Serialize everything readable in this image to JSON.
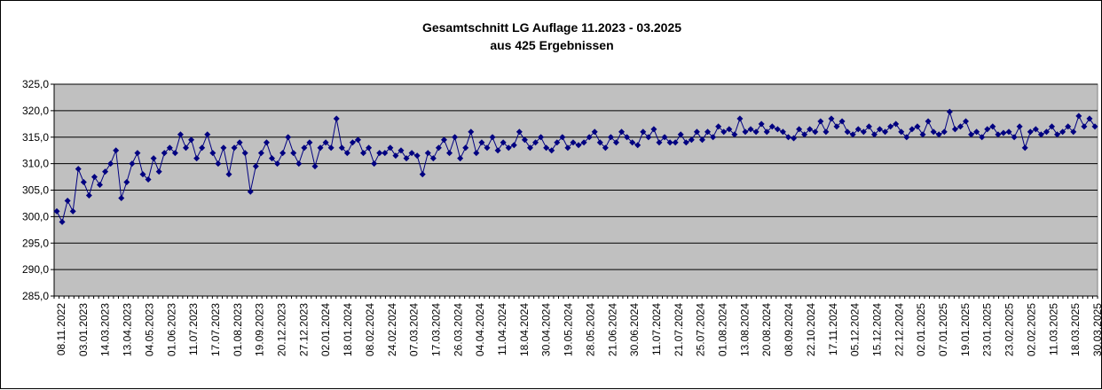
{
  "chart_data": {
    "type": "line",
    "title": "Gesamtschnitt LG Auflage 11.2023 - 03.2025",
    "subtitle": "aus 425 Ergebnissen",
    "xlabel": "",
    "ylabel": "",
    "ylim": [
      285,
      325
    ],
    "yticks": [
      "285,0",
      "290,0",
      "295,0",
      "300,0",
      "305,0",
      "310,0",
      "315,0",
      "320,0",
      "325,0"
    ],
    "grid": true,
    "legend": "none",
    "colors": {
      "series": "#000080",
      "plot_bg": "#c0c0c0",
      "grid": "#000000"
    },
    "x_tick_labels": [
      "08.11.2022",
      "03.01.2023",
      "14.03.2023",
      "13.04.2023",
      "04.05.2023",
      "01.06.2023",
      "11.07.2023",
      "17.07.2023",
      "01.08.2023",
      "19.09.2023",
      "20.12.2023",
      "27.12.2023",
      "02.01.2024",
      "18.01.2024",
      "08.02.2024",
      "24.02.2024",
      "07.03.2024",
      "17.03.2024",
      "26.03.2024",
      "04.04.2024",
      "11.04.2024",
      "18.04.2024",
      "30.04.2024",
      "19.05.2024",
      "28.05.2024",
      "21.06.2024",
      "30.06.2024",
      "11.07.2024",
      "21.07.2024",
      "25.07.2024",
      "01.08.2024",
      "13.08.2024",
      "20.08.2024",
      "08.09.2024",
      "22.10.2024",
      "17.11.2024",
      "05.12.2024",
      "15.12.2024",
      "22.12.2024",
      "02.01.2025",
      "07.01.2025",
      "19.01.2025",
      "23.01.2025",
      "23.02.2025",
      "02.02.2025",
      "11.03.2025",
      "18.03.2025",
      "30.03.2025"
    ],
    "series": [
      {
        "name": "Gesamtschnitt",
        "values": [
          301,
          299,
          303,
          301,
          309,
          306.5,
          304,
          307.5,
          306,
          308.5,
          310,
          312.5,
          303.5,
          306.5,
          310,
          312,
          308,
          307,
          311,
          308.5,
          312,
          313,
          312,
          315.5,
          313,
          314.5,
          311,
          313,
          315.5,
          312,
          310,
          313,
          308,
          313,
          314,
          312,
          304.7,
          309.5,
          312,
          314,
          311,
          310,
          312,
          315,
          312,
          310,
          313,
          314,
          309.5,
          313,
          314,
          313,
          318.5,
          313,
          312,
          314,
          314.5,
          312,
          313,
          310,
          312,
          312,
          313,
          311.5,
          312.5,
          311,
          312,
          311.5,
          308,
          312,
          311,
          313,
          314.5,
          312,
          315,
          311,
          313,
          316,
          312,
          314,
          313,
          315,
          312.5,
          314,
          313,
          313.5,
          316,
          314.5,
          313,
          314,
          315,
          313,
          312.5,
          314,
          315,
          313,
          314,
          313.5,
          314,
          315,
          316,
          314,
          313,
          315,
          314,
          316,
          315,
          314,
          313.5,
          316,
          315,
          316.5,
          314,
          315,
          314,
          314,
          315.5,
          314,
          314.5,
          316,
          314.5,
          316,
          315,
          317,
          316,
          316.5,
          315.5,
          318.5,
          316,
          316.5,
          316,
          317.5,
          316,
          317,
          316.5,
          316,
          315,
          314.8,
          316.5,
          315.5,
          316.5,
          316,
          318,
          316,
          318.5,
          317,
          318,
          316,
          315.5,
          316.5,
          316,
          317,
          315.5,
          316.5,
          316,
          317,
          317.5,
          316,
          315,
          316.5,
          317,
          315.5,
          318,
          316,
          315.5,
          316,
          319.8,
          316.5,
          317,
          318,
          315.5,
          316,
          315,
          316.5,
          317,
          315.5,
          315.8,
          316,
          315,
          317,
          313,
          316,
          316.5,
          315.5,
          316,
          317,
          315.5,
          316,
          317,
          316,
          319,
          317,
          318.5,
          317
        ]
      }
    ]
  }
}
